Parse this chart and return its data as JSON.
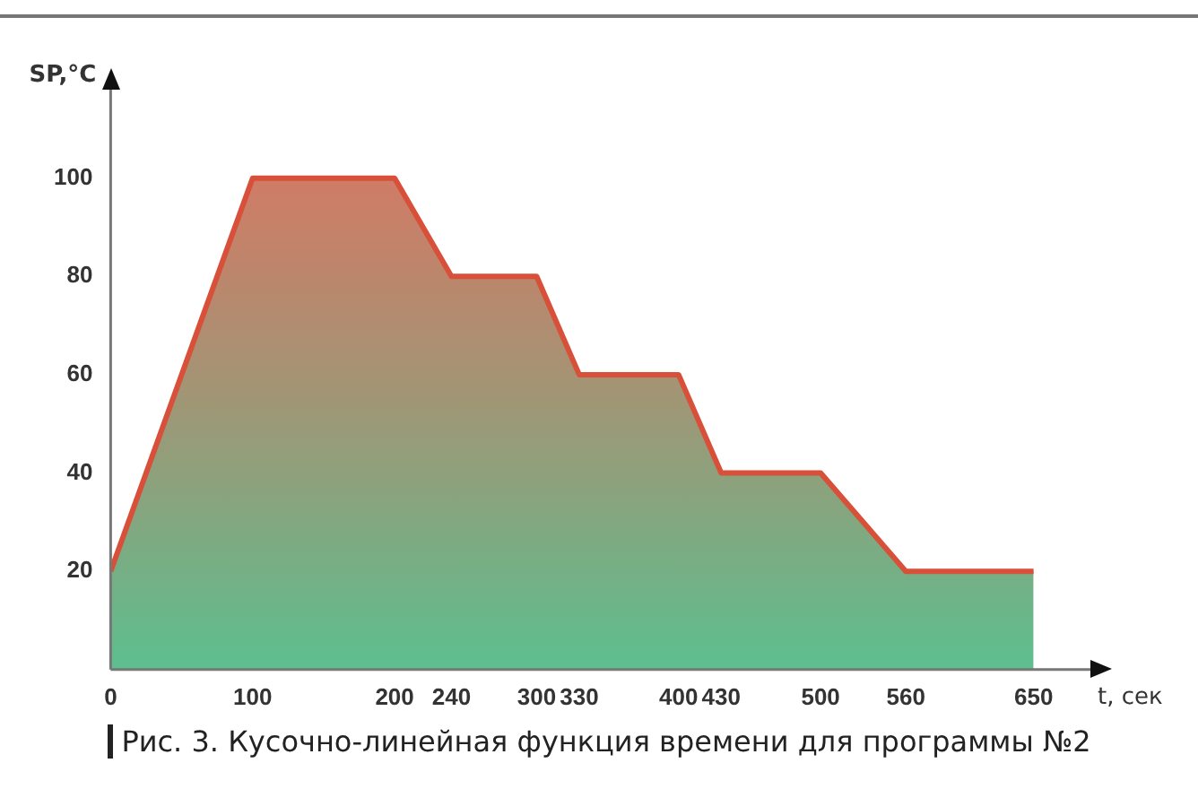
{
  "chart_data": {
    "type": "area",
    "xlabel": "t, сек",
    "ylabel": "SP,°C",
    "x": [
      0,
      100,
      200,
      240,
      300,
      330,
      400,
      430,
      500,
      560,
      650
    ],
    "series": [
      {
        "color": "#d9503a",
        "values": [
          20,
          100,
          100,
          80,
          80,
          60,
          60,
          40,
          40,
          20,
          20
        ]
      }
    ],
    "xlim": [
      0,
      690
    ],
    "xticks": [
      0,
      100,
      200,
      240,
      300,
      330,
      400,
      430,
      500,
      560,
      650
    ],
    "ylim": [
      0,
      118
    ],
    "yticks": [
      20,
      40,
      60,
      80,
      100
    ],
    "grid": false,
    "legend": false,
    "annotations": [
      "Рис. 3. Кусочно-линейная функция времени для программы №2"
    ]
  }
}
